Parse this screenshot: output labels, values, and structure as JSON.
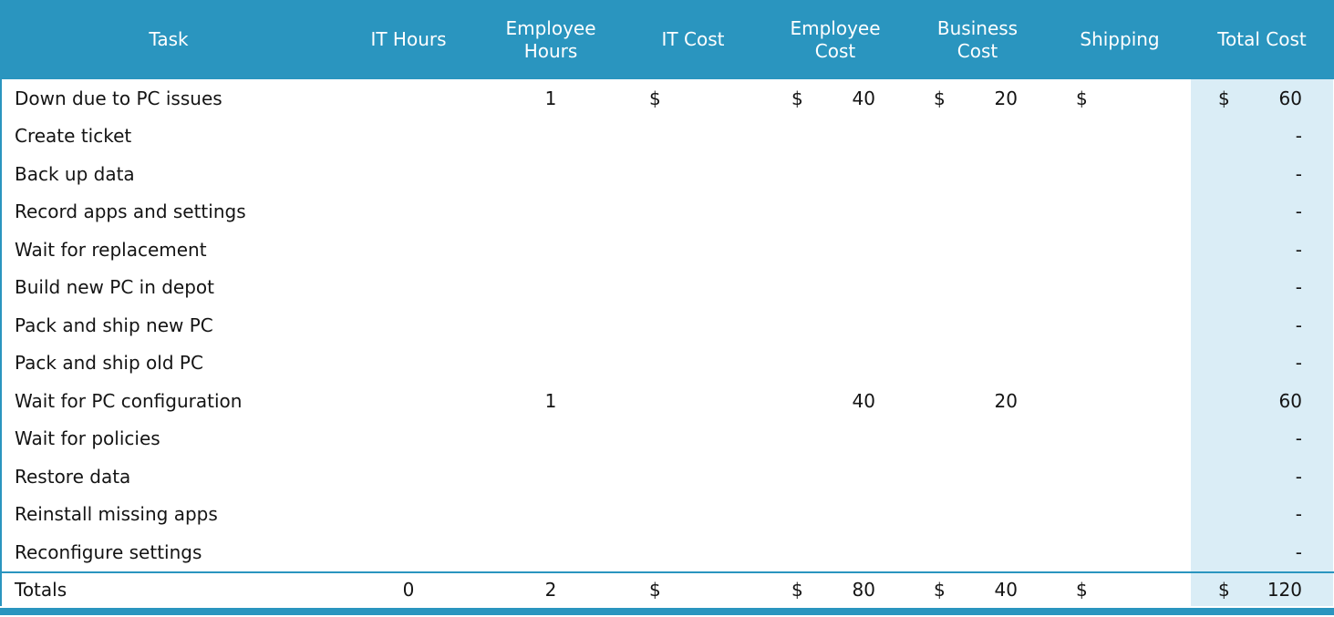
{
  "colors": {
    "header_bg": "#2A95BF",
    "highlight_column_bg": "#DAEDF6",
    "header_text": "#FFFFFF",
    "body_text": "#141414"
  },
  "table": {
    "columns": [
      {
        "id": "task",
        "label": "Task"
      },
      {
        "id": "it_hours",
        "label": "IT Hours"
      },
      {
        "id": "employee_hours",
        "label": "Employee Hours"
      },
      {
        "id": "it_cost",
        "label": "IT Cost"
      },
      {
        "id": "employee_cost",
        "label": "Employee Cost"
      },
      {
        "id": "business_cost",
        "label": "Business Cost"
      },
      {
        "id": "shipping",
        "label": "Shipping"
      },
      {
        "id": "total_cost",
        "label": "Total Cost"
      }
    ],
    "rows": [
      {
        "task": "Down due to PC issues",
        "it_hours": "",
        "employee_hours": "1",
        "it_cost_sym": "$",
        "it_cost_val": "",
        "employee_cost_sym": "$",
        "employee_cost_val": "40",
        "business_cost_sym": "$",
        "business_cost_val": "20",
        "shipping_sym": "$",
        "shipping_val": "",
        "total_cost_sym": "$",
        "total_cost_val": "60"
      },
      {
        "task": "Create ticket",
        "it_hours": "",
        "employee_hours": "",
        "it_cost_sym": "",
        "it_cost_val": "",
        "employee_cost_sym": "",
        "employee_cost_val": "",
        "business_cost_sym": "",
        "business_cost_val": "",
        "shipping_sym": "",
        "shipping_val": "",
        "total_cost_sym": "",
        "total_cost_val": "-"
      },
      {
        "task": "Back up data",
        "it_hours": "",
        "employee_hours": "",
        "it_cost_sym": "",
        "it_cost_val": "",
        "employee_cost_sym": "",
        "employee_cost_val": "",
        "business_cost_sym": "",
        "business_cost_val": "",
        "shipping_sym": "",
        "shipping_val": "",
        "total_cost_sym": "",
        "total_cost_val": "-"
      },
      {
        "task": "Record apps and settings",
        "it_hours": "",
        "employee_hours": "",
        "it_cost_sym": "",
        "it_cost_val": "",
        "employee_cost_sym": "",
        "employee_cost_val": "",
        "business_cost_sym": "",
        "business_cost_val": "",
        "shipping_sym": "",
        "shipping_val": "",
        "total_cost_sym": "",
        "total_cost_val": "-"
      },
      {
        "task": "Wait for replacement",
        "it_hours": "",
        "employee_hours": "",
        "it_cost_sym": "",
        "it_cost_val": "",
        "employee_cost_sym": "",
        "employee_cost_val": "",
        "business_cost_sym": "",
        "business_cost_val": "",
        "shipping_sym": "",
        "shipping_val": "",
        "total_cost_sym": "",
        "total_cost_val": "-"
      },
      {
        "task": "Build new PC in depot",
        "it_hours": "",
        "employee_hours": "",
        "it_cost_sym": "",
        "it_cost_val": "",
        "employee_cost_sym": "",
        "employee_cost_val": "",
        "business_cost_sym": "",
        "business_cost_val": "",
        "shipping_sym": "",
        "shipping_val": "",
        "total_cost_sym": "",
        "total_cost_val": "-"
      },
      {
        "task": "Pack and ship new PC",
        "it_hours": "",
        "employee_hours": "",
        "it_cost_sym": "",
        "it_cost_val": "",
        "employee_cost_sym": "",
        "employee_cost_val": "",
        "business_cost_sym": "",
        "business_cost_val": "",
        "shipping_sym": "",
        "shipping_val": "",
        "total_cost_sym": "",
        "total_cost_val": "-"
      },
      {
        "task": "Pack and ship old PC",
        "it_hours": "",
        "employee_hours": "",
        "it_cost_sym": "",
        "it_cost_val": "",
        "employee_cost_sym": "",
        "employee_cost_val": "",
        "business_cost_sym": "",
        "business_cost_val": "",
        "shipping_sym": "",
        "shipping_val": "",
        "total_cost_sym": "",
        "total_cost_val": "-"
      },
      {
        "task": "Wait for PC configuration",
        "it_hours": "",
        "employee_hours": "1",
        "it_cost_sym": "",
        "it_cost_val": "",
        "employee_cost_sym": "",
        "employee_cost_val": "40",
        "business_cost_sym": "",
        "business_cost_val": "20",
        "shipping_sym": "",
        "shipping_val": "",
        "total_cost_sym": "",
        "total_cost_val": "60"
      },
      {
        "task": "Wait for policies",
        "it_hours": "",
        "employee_hours": "",
        "it_cost_sym": "",
        "it_cost_val": "",
        "employee_cost_sym": "",
        "employee_cost_val": "",
        "business_cost_sym": "",
        "business_cost_val": "",
        "shipping_sym": "",
        "shipping_val": "",
        "total_cost_sym": "",
        "total_cost_val": "-"
      },
      {
        "task": "Restore data",
        "it_hours": "",
        "employee_hours": "",
        "it_cost_sym": "",
        "it_cost_val": "",
        "employee_cost_sym": "",
        "employee_cost_val": "",
        "business_cost_sym": "",
        "business_cost_val": "",
        "shipping_sym": "",
        "shipping_val": "",
        "total_cost_sym": "",
        "total_cost_val": "-"
      },
      {
        "task": "Reinstall missing apps",
        "it_hours": "",
        "employee_hours": "",
        "it_cost_sym": "",
        "it_cost_val": "",
        "employee_cost_sym": "",
        "employee_cost_val": "",
        "business_cost_sym": "",
        "business_cost_val": "",
        "shipping_sym": "",
        "shipping_val": "",
        "total_cost_sym": "",
        "total_cost_val": "-"
      },
      {
        "task": "Reconfigure settings",
        "it_hours": "",
        "employee_hours": "",
        "it_cost_sym": "",
        "it_cost_val": "",
        "employee_cost_sym": "",
        "employee_cost_val": "",
        "business_cost_sym": "",
        "business_cost_val": "",
        "shipping_sym": "",
        "shipping_val": "",
        "total_cost_sym": "",
        "total_cost_val": "-"
      }
    ],
    "totals_row": {
      "task": "Totals",
      "it_hours": "0",
      "employee_hours": "2",
      "it_cost_sym": "$",
      "it_cost_val": "",
      "employee_cost_sym": "$",
      "employee_cost_val": "80",
      "business_cost_sym": "$",
      "business_cost_val": "40",
      "shipping_sym": "$",
      "shipping_val": "",
      "total_cost_sym": "$",
      "total_cost_val": "120"
    }
  }
}
